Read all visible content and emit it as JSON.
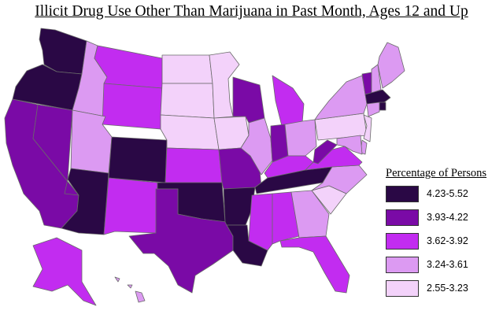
{
  "title": "Illicit Drug Use Other Than Marijuana in Past Month, Ages 12 and Up",
  "legend": {
    "title": "Percentage of Persons",
    "bins": [
      {
        "label": "4.23-5.52",
        "color": "#2a0845"
      },
      {
        "label": "3.93-4.22",
        "color": "#7a0aa6"
      },
      {
        "label": "3.62-3.92",
        "color": "#c22cf0"
      },
      {
        "label": "3.24-3.61",
        "color": "#dc9af2"
      },
      {
        "label": "2.55-3.23",
        "color": "#f3d2fa"
      }
    ]
  },
  "states": [
    {
      "name": "WA",
      "bin": 0
    },
    {
      "name": "OR",
      "bin": 0
    },
    {
      "name": "CA",
      "bin": 1
    },
    {
      "name": "NV",
      "bin": 1
    },
    {
      "name": "ID",
      "bin": 3
    },
    {
      "name": "MT",
      "bin": 2
    },
    {
      "name": "WY",
      "bin": 2
    },
    {
      "name": "UT",
      "bin": 3
    },
    {
      "name": "AZ",
      "bin": 0
    },
    {
      "name": "CO",
      "bin": 0
    },
    {
      "name": "NM",
      "bin": 2
    },
    {
      "name": "ND",
      "bin": 4
    },
    {
      "name": "SD",
      "bin": 4
    },
    {
      "name": "NE",
      "bin": 4
    },
    {
      "name": "KS",
      "bin": 2
    },
    {
      "name": "OK",
      "bin": 0
    },
    {
      "name": "TX",
      "bin": 1
    },
    {
      "name": "MN",
      "bin": 4
    },
    {
      "name": "IA",
      "bin": 4
    },
    {
      "name": "MO",
      "bin": 1
    },
    {
      "name": "AR",
      "bin": 0
    },
    {
      "name": "LA",
      "bin": 0
    },
    {
      "name": "WI",
      "bin": 1
    },
    {
      "name": "IL",
      "bin": 3
    },
    {
      "name": "MI",
      "bin": 2
    },
    {
      "name": "IN",
      "bin": 1
    },
    {
      "name": "OH",
      "bin": 3
    },
    {
      "name": "KY",
      "bin": 2
    },
    {
      "name": "TN",
      "bin": 0
    },
    {
      "name": "MS",
      "bin": 2
    },
    {
      "name": "AL",
      "bin": 2
    },
    {
      "name": "GA",
      "bin": 3
    },
    {
      "name": "FL",
      "bin": 2
    },
    {
      "name": "SC",
      "bin": 4
    },
    {
      "name": "NC",
      "bin": 3
    },
    {
      "name": "VA",
      "bin": 2
    },
    {
      "name": "WV",
      "bin": 1
    },
    {
      "name": "PA",
      "bin": 4
    },
    {
      "name": "NY",
      "bin": 3
    },
    {
      "name": "VT",
      "bin": 1
    },
    {
      "name": "NH",
      "bin": 3
    },
    {
      "name": "ME",
      "bin": 3
    },
    {
      "name": "MA",
      "bin": 0
    },
    {
      "name": "RI",
      "bin": 0
    },
    {
      "name": "CT",
      "bin": 3
    },
    {
      "name": "NJ",
      "bin": 4
    },
    {
      "name": "DE",
      "bin": 3
    },
    {
      "name": "MD",
      "bin": 3
    },
    {
      "name": "AK",
      "bin": 2
    },
    {
      "name": "HI",
      "bin": 3
    }
  ]
}
